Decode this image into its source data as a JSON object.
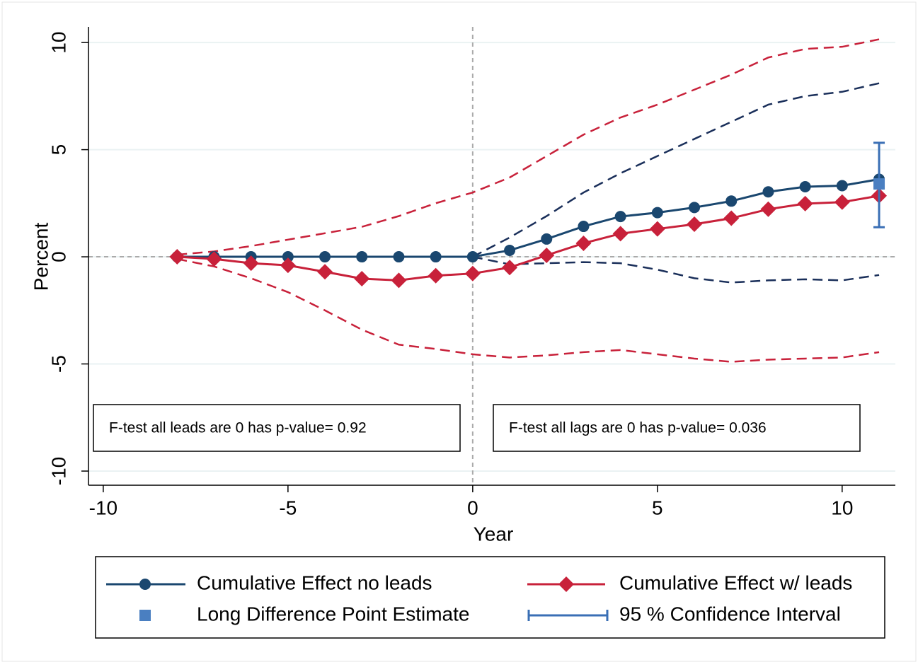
{
  "chart_data": {
    "type": "line",
    "xlabel": "Year",
    "ylabel": "Percent",
    "xlim": [
      -10.4,
      11.44
    ],
    "ylim": [
      -10.66,
      10.73
    ],
    "xticks": [
      -10,
      -5,
      0,
      5,
      10
    ],
    "yticks": [
      10,
      5,
      0,
      -5,
      -10
    ],
    "grid": true,
    "x": [
      -8,
      -7,
      -6,
      -5,
      -4,
      -3,
      -2,
      -1,
      0,
      1,
      2,
      3,
      4,
      5,
      6,
      7,
      8,
      9,
      10,
      11
    ],
    "series": [
      {
        "name": "Cumulative Effect no leads",
        "color": "#1a476f",
        "marker": "circle",
        "values": [
          0,
          0,
          0,
          0,
          0,
          0,
          0,
          0,
          0,
          0.3,
          0.83,
          1.42,
          1.88,
          2.06,
          2.3,
          2.6,
          3.03,
          3.27,
          3.32,
          3.62
        ]
      },
      {
        "name": "Cumulative Effect w/ leads",
        "color": "#c8213a",
        "marker": "diamond",
        "values": [
          0,
          -0.1,
          -0.3,
          -0.4,
          -0.7,
          -1.02,
          -1.1,
          -0.88,
          -0.78,
          -0.5,
          0.07,
          0.63,
          1.08,
          1.3,
          1.52,
          1.8,
          2.22,
          2.48,
          2.55,
          2.85
        ]
      }
    ],
    "ci_bands": [
      {
        "color": "#1a2f5a",
        "upper": [
          null,
          null,
          null,
          null,
          null,
          null,
          null,
          null,
          0,
          0.9,
          1.9,
          3.0,
          3.9,
          4.7,
          5.5,
          6.3,
          7.1,
          7.5,
          7.7,
          8.1
        ],
        "lower": [
          null,
          null,
          null,
          null,
          null,
          null,
          null,
          null,
          0,
          -0.35,
          -0.3,
          -0.25,
          -0.3,
          -0.6,
          -1.0,
          -1.2,
          -1.1,
          -1.05,
          -1.1,
          -0.85
        ]
      },
      {
        "color": "#c8213a",
        "upper": [
          0.1,
          0.25,
          0.5,
          0.8,
          1.1,
          1.4,
          1.9,
          2.5,
          3.0,
          3.7,
          4.7,
          5.7,
          6.5,
          7.1,
          7.8,
          8.5,
          9.3,
          9.7,
          9.8,
          10.15
        ],
        "lower": [
          -0.1,
          -0.45,
          -1.0,
          -1.65,
          -2.5,
          -3.4,
          -4.1,
          -4.3,
          -4.55,
          -4.7,
          -4.6,
          -4.45,
          -4.35,
          -4.55,
          -4.75,
          -4.9,
          -4.8,
          -4.75,
          -4.7,
          -4.45
        ]
      }
    ],
    "point_estimate": {
      "name": "Long Difference Point Estimate",
      "color": "#4a7fc1",
      "x": 11,
      "value": 3.4
    },
    "interval": {
      "name": "95 % Confidence Interval",
      "color": "#3a6fb5",
      "x": 11,
      "low": 1.38,
      "high": 5.32
    },
    "annotations": [
      "F-test all leads are 0 has p-value= 0.92",
      "F-test all lags are 0 has p-value= 0.036"
    ]
  }
}
